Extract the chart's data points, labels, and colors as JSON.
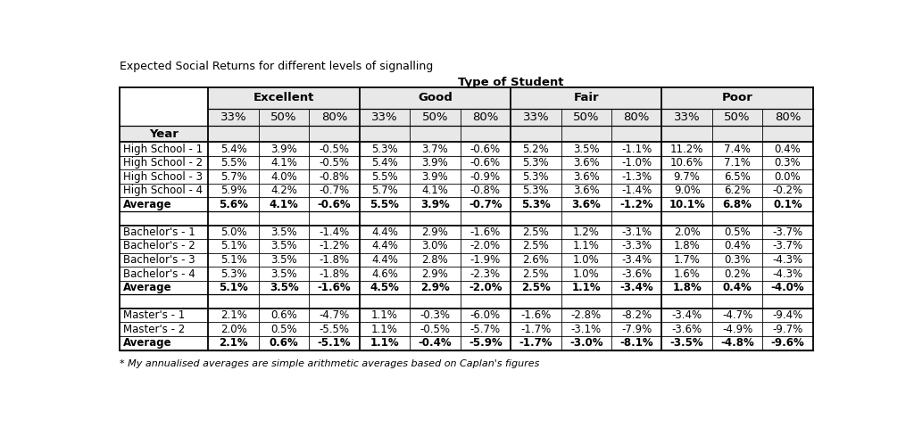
{
  "title": "Expected Social Returns for different levels of signalling",
  "subtitle": "Type of Student",
  "footnote": "* My annualised averages are simple arithmetic averages based on Caplan's figures",
  "col_groups": [
    "Excellent",
    "Good",
    "Fair",
    "Poor"
  ],
  "col_subheaders": [
    "33%",
    "50%",
    "80%",
    "33%",
    "50%",
    "80%",
    "33%",
    "50%",
    "80%",
    "33%",
    "50%",
    "80%"
  ],
  "row_header": "Year",
  "rows": [
    {
      "label": "High School - 1",
      "values": [
        "5.4%",
        "3.9%",
        "-0.5%",
        "5.3%",
        "3.7%",
        "-0.6%",
        "5.2%",
        "3.5%",
        "-1.1%",
        "11.2%",
        "7.4%",
        "0.4%"
      ],
      "bold": false,
      "separator_before": false
    },
    {
      "label": "High School - 2",
      "values": [
        "5.5%",
        "4.1%",
        "-0.5%",
        "5.4%",
        "3.9%",
        "-0.6%",
        "5.3%",
        "3.6%",
        "-1.0%",
        "10.6%",
        "7.1%",
        "0.3%"
      ],
      "bold": false,
      "separator_before": false
    },
    {
      "label": "High School - 3",
      "values": [
        "5.7%",
        "4.0%",
        "-0.8%",
        "5.5%",
        "3.9%",
        "-0.9%",
        "5.3%",
        "3.6%",
        "-1.3%",
        "9.7%",
        "6.5%",
        "0.0%"
      ],
      "bold": false,
      "separator_before": false
    },
    {
      "label": "High School - 4",
      "values": [
        "5.9%",
        "4.2%",
        "-0.7%",
        "5.7%",
        "4.1%",
        "-0.8%",
        "5.3%",
        "3.6%",
        "-1.4%",
        "9.0%",
        "6.2%",
        "-0.2%"
      ],
      "bold": false,
      "separator_before": false
    },
    {
      "label": "Average",
      "values": [
        "5.6%",
        "4.1%",
        "-0.6%",
        "5.5%",
        "3.9%",
        "-0.7%",
        "5.3%",
        "3.6%",
        "-1.2%",
        "10.1%",
        "6.8%",
        "0.1%"
      ],
      "bold": true,
      "separator_before": false
    },
    {
      "label": "",
      "values": [
        "",
        "",
        "",
        "",
        "",
        "",
        "",
        "",
        "",
        "",
        "",
        ""
      ],
      "bold": false,
      "separator_before": false
    },
    {
      "label": "Bachelor's - 1",
      "values": [
        "5.0%",
        "3.5%",
        "-1.4%",
        "4.4%",
        "2.9%",
        "-1.6%",
        "2.5%",
        "1.2%",
        "-3.1%",
        "2.0%",
        "0.5%",
        "-3.7%"
      ],
      "bold": false,
      "separator_before": false
    },
    {
      "label": "Bachelor's - 2",
      "values": [
        "5.1%",
        "3.5%",
        "-1.2%",
        "4.4%",
        "3.0%",
        "-2.0%",
        "2.5%",
        "1.1%",
        "-3.3%",
        "1.8%",
        "0.4%",
        "-3.7%"
      ],
      "bold": false,
      "separator_before": false
    },
    {
      "label": "Bachelor's - 3",
      "values": [
        "5.1%",
        "3.5%",
        "-1.8%",
        "4.4%",
        "2.8%",
        "-1.9%",
        "2.6%",
        "1.0%",
        "-3.4%",
        "1.7%",
        "0.3%",
        "-4.3%"
      ],
      "bold": false,
      "separator_before": false
    },
    {
      "label": "Bachelor's - 4",
      "values": [
        "5.3%",
        "3.5%",
        "-1.8%",
        "4.6%",
        "2.9%",
        "-2.3%",
        "2.5%",
        "1.0%",
        "-3.6%",
        "1.6%",
        "0.2%",
        "-4.3%"
      ],
      "bold": false,
      "separator_before": false
    },
    {
      "label": "Average",
      "values": [
        "5.1%",
        "3.5%",
        "-1.6%",
        "4.5%",
        "2.9%",
        "-2.0%",
        "2.5%",
        "1.1%",
        "-3.4%",
        "1.8%",
        "0.4%",
        "-4.0%"
      ],
      "bold": true,
      "separator_before": false
    },
    {
      "label": "",
      "values": [
        "",
        "",
        "",
        "",
        "",
        "",
        "",
        "",
        "",
        "",
        "",
        ""
      ],
      "bold": false,
      "separator_before": false
    },
    {
      "label": "Master's - 1",
      "values": [
        "2.1%",
        "0.6%",
        "-4.7%",
        "1.1%",
        "-0.3%",
        "-6.0%",
        "-1.6%",
        "-2.8%",
        "-8.2%",
        "-3.4%",
        "-4.7%",
        "-9.4%"
      ],
      "bold": false,
      "separator_before": false
    },
    {
      "label": "Master's - 2",
      "values": [
        "2.0%",
        "0.5%",
        "-5.5%",
        "1.1%",
        "-0.5%",
        "-5.7%",
        "-1.7%",
        "-3.1%",
        "-7.9%",
        "-3.6%",
        "-4.9%",
        "-9.7%"
      ],
      "bold": false,
      "separator_before": false
    },
    {
      "label": "Average",
      "values": [
        "2.1%",
        "0.6%",
        "-5.1%",
        "1.1%",
        "-0.4%",
        "-5.9%",
        "-1.7%",
        "-3.0%",
        "-8.1%",
        "-3.5%",
        "-4.8%",
        "-9.6%"
      ],
      "bold": true,
      "separator_before": false
    }
  ],
  "bg_color": "#ffffff",
  "header_bg": "#e8e8e8",
  "border_color": "#000000",
  "text_color": "#000000",
  "font_size": 8.5,
  "title_fontsize": 9.0,
  "subtitle_fontsize": 9.5,
  "header_fontsize": 9.5
}
